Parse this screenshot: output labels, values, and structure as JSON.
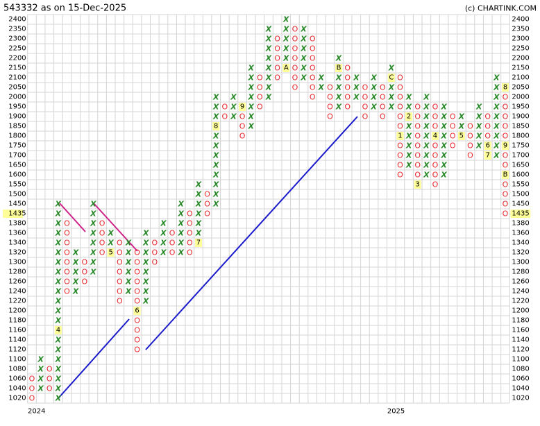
{
  "chart_data": {
    "type": "point-and-figure",
    "title": "543332 as on 15-Dec-2025",
    "credit": "(c) CHARTINK.COM",
    "yticks": [
      1020,
      1040,
      1060,
      1080,
      1100,
      1120,
      1140,
      1160,
      1180,
      1200,
      1220,
      1240,
      1260,
      1280,
      1300,
      1320,
      1340,
      1360,
      1380,
      1435,
      1450,
      1500,
      1550,
      1600,
      1650,
      1700,
      1750,
      1800,
      1850,
      1900,
      1950,
      2000,
      2050,
      2100,
      2150,
      2200,
      2250,
      2300,
      2350,
      2400
    ],
    "last_price": 1435,
    "year_labels": [
      "2024",
      "2025"
    ],
    "colors": {
      "X": "#2a8a2a",
      "O": "#e8262a",
      "marker": "#ffff99"
    },
    "grid": true,
    "columns": [
      {
        "type": "O",
        "from": 1060,
        "to": 1020,
        "markers": []
      },
      {
        "type": "X",
        "from": 1040,
        "to": 1100,
        "markers": []
      },
      {
        "type": "O",
        "from": 1080,
        "to": 1040,
        "markers": []
      },
      {
        "type": "X",
        "from": 1020,
        "to": 1450,
        "markers": [
          {
            "price": 1160,
            "label": "4"
          }
        ]
      },
      {
        "type": "O",
        "from": 1380,
        "to": 1240,
        "markers": []
      },
      {
        "type": "X",
        "from": 1240,
        "to": 1320,
        "markers": []
      },
      {
        "type": "O",
        "from": 1300,
        "to": 1260,
        "markers": []
      },
      {
        "type": "X",
        "from": 1280,
        "to": 1450,
        "markers": []
      },
      {
        "type": "O",
        "from": 1380,
        "to": 1320,
        "markers": []
      },
      {
        "type": "X",
        "from": 1320,
        "to": 1360,
        "markers": [
          {
            "price": 1320,
            "label": "5"
          }
        ]
      },
      {
        "type": "O",
        "from": 1340,
        "to": 1220,
        "markers": []
      },
      {
        "type": "X",
        "from": 1240,
        "to": 1340,
        "markers": []
      },
      {
        "type": "O",
        "from": 1320,
        "to": 1120,
        "markers": [
          {
            "price": 1200,
            "label": "6"
          }
        ]
      },
      {
        "type": "X",
        "from": 1220,
        "to": 1360,
        "markers": []
      },
      {
        "type": "O",
        "from": 1340,
        "to": 1300,
        "markers": []
      },
      {
        "type": "X",
        "from": 1320,
        "to": 1380,
        "markers": []
      },
      {
        "type": "O",
        "from": 1360,
        "to": 1320,
        "markers": []
      },
      {
        "type": "X",
        "from": 1320,
        "to": 1450,
        "markers": []
      },
      {
        "type": "O",
        "from": 1435,
        "to": 1320,
        "markers": []
      },
      {
        "type": "X",
        "from": 1340,
        "to": 1550,
        "markers": [
          {
            "price": 1340,
            "label": "7"
          }
        ]
      },
      {
        "type": "O",
        "from": 1500,
        "to": 1435,
        "markers": []
      },
      {
        "type": "X",
        "from": 1450,
        "to": 2000,
        "markers": [
          {
            "price": 1850,
            "label": "8"
          }
        ]
      },
      {
        "type": "O",
        "from": 1950,
        "to": 1900,
        "markers": []
      },
      {
        "type": "X",
        "from": 1900,
        "to": 2000,
        "markers": []
      },
      {
        "type": "O",
        "from": 1950,
        "to": 1800,
        "markers": [
          {
            "price": 1950,
            "label": "9"
          }
        ]
      },
      {
        "type": "X",
        "from": 1850,
        "to": 2150,
        "markers": []
      },
      {
        "type": "O",
        "from": 2100,
        "to": 1950,
        "markers": []
      },
      {
        "type": "X",
        "from": 2000,
        "to": 2350,
        "markers": []
      },
      {
        "type": "O",
        "from": 2300,
        "to": 2100,
        "markers": []
      },
      {
        "type": "X",
        "from": 2150,
        "to": 2400,
        "markers": [
          {
            "price": 2150,
            "label": "A"
          }
        ]
      },
      {
        "type": "O",
        "from": 2350,
        "to": 2050,
        "markers": []
      },
      {
        "type": "X",
        "from": 2100,
        "to": 2350,
        "markers": []
      },
      {
        "type": "O",
        "from": 2300,
        "to": 2000,
        "markers": []
      },
      {
        "type": "X",
        "from": 2050,
        "to": 2100,
        "markers": []
      },
      {
        "type": "O",
        "from": 2050,
        "to": 1900,
        "markers": []
      },
      {
        "type": "X",
        "from": 1950,
        "to": 2200,
        "markers": [
          {
            "price": 2150,
            "label": "B"
          }
        ]
      },
      {
        "type": "O",
        "from": 2150,
        "to": 1950,
        "markers": []
      },
      {
        "type": "X",
        "from": 2000,
        "to": 2100,
        "markers": []
      },
      {
        "type": "O",
        "from": 2050,
        "to": 1900,
        "markers": []
      },
      {
        "type": "X",
        "from": 1950,
        "to": 2100,
        "markers": []
      },
      {
        "type": "O",
        "from": 2050,
        "to": 1900,
        "markers": []
      },
      {
        "type": "X",
        "from": 1950,
        "to": 2150,
        "markers": [
          {
            "price": 2100,
            "label": "C"
          }
        ]
      },
      {
        "type": "O",
        "from": 2100,
        "to": 1600,
        "markers": [
          {
            "price": 1800,
            "label": "1"
          }
        ]
      },
      {
        "type": "X",
        "from": 1650,
        "to": 2000,
        "markers": [
          {
            "price": 1900,
            "label": "2"
          }
        ]
      },
      {
        "type": "O",
        "from": 1950,
        "to": 1550,
        "markers": [
          {
            "price": 1550,
            "label": "3"
          }
        ]
      },
      {
        "type": "X",
        "from": 1600,
        "to": 2000,
        "markers": []
      },
      {
        "type": "O",
        "from": 1950,
        "to": 1550,
        "markers": [
          {
            "price": 1800,
            "label": "4"
          }
        ]
      },
      {
        "type": "X",
        "from": 1600,
        "to": 1950,
        "markers": []
      },
      {
        "type": "O",
        "from": 1900,
        "to": 1750,
        "markers": []
      },
      {
        "type": "X",
        "from": 1800,
        "to": 1900,
        "markers": [
          {
            "price": 1800,
            "label": "5"
          }
        ]
      },
      {
        "type": "O",
        "from": 1850,
        "to": 1700,
        "markers": []
      },
      {
        "type": "X",
        "from": 1750,
        "to": 1950,
        "markers": []
      },
      {
        "type": "O",
        "from": 1900,
        "to": 1700,
        "markers": [
          {
            "price": 1750,
            "label": "6"
          },
          {
            "price": 1700,
            "label": "7"
          }
        ]
      },
      {
        "type": "X",
        "from": 1700,
        "to": 2100,
        "markers": []
      },
      {
        "type": "O",
        "from": 2050,
        "to": 1435,
        "markers": [
          {
            "price": 2050,
            "label": "8"
          },
          {
            "price": 1750,
            "label": "9"
          },
          {
            "price": 1600,
            "label": "B"
          }
        ]
      }
    ]
  }
}
